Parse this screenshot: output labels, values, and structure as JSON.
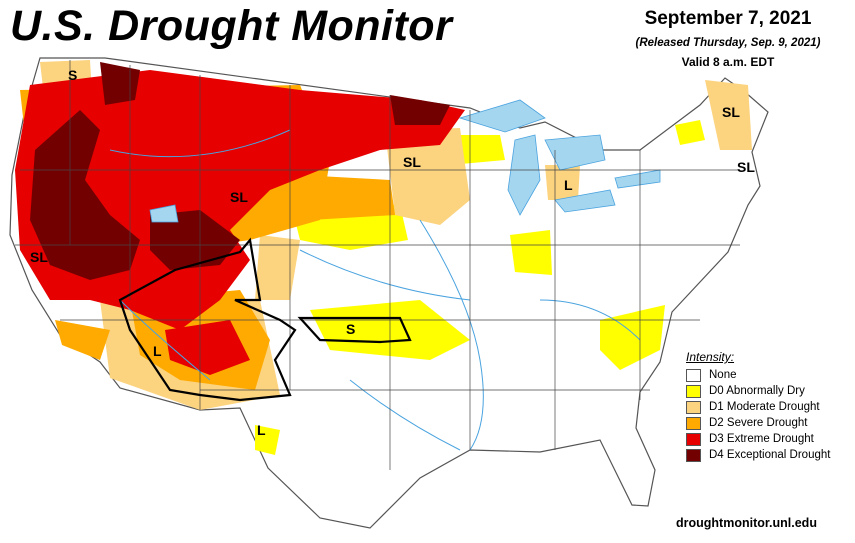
{
  "header": {
    "title": "U.S. Drought Monitor",
    "date": "September 7, 2021",
    "released": "(Released Thursday, Sep. 9, 2021)",
    "valid": "Valid 8 a.m. EDT"
  },
  "legend": {
    "title": "Intensity:",
    "items": [
      {
        "label": "None",
        "color": "#ffffff"
      },
      {
        "label": "D0 Abnormally Dry",
        "color": "#ffff00"
      },
      {
        "label": "D1 Moderate Drought",
        "color": "#fcd37f"
      },
      {
        "label": "D2 Severe Drought",
        "color": "#ffaa00"
      },
      {
        "label": "D3 Extreme Drought",
        "color": "#e60000"
      },
      {
        "label": "D4 Exceptional Drought",
        "color": "#730000"
      }
    ]
  },
  "map": {
    "impact_labels": [
      "S",
      "SL",
      "SL",
      "SL",
      "SL",
      "L",
      "SL",
      "S",
      "L",
      "L"
    ],
    "colors": {
      "water": "#a5d6f0",
      "river": "#4aa3df",
      "border": "#444444"
    }
  },
  "footer": {
    "website": "droughtmonitor.unl.edu"
  }
}
